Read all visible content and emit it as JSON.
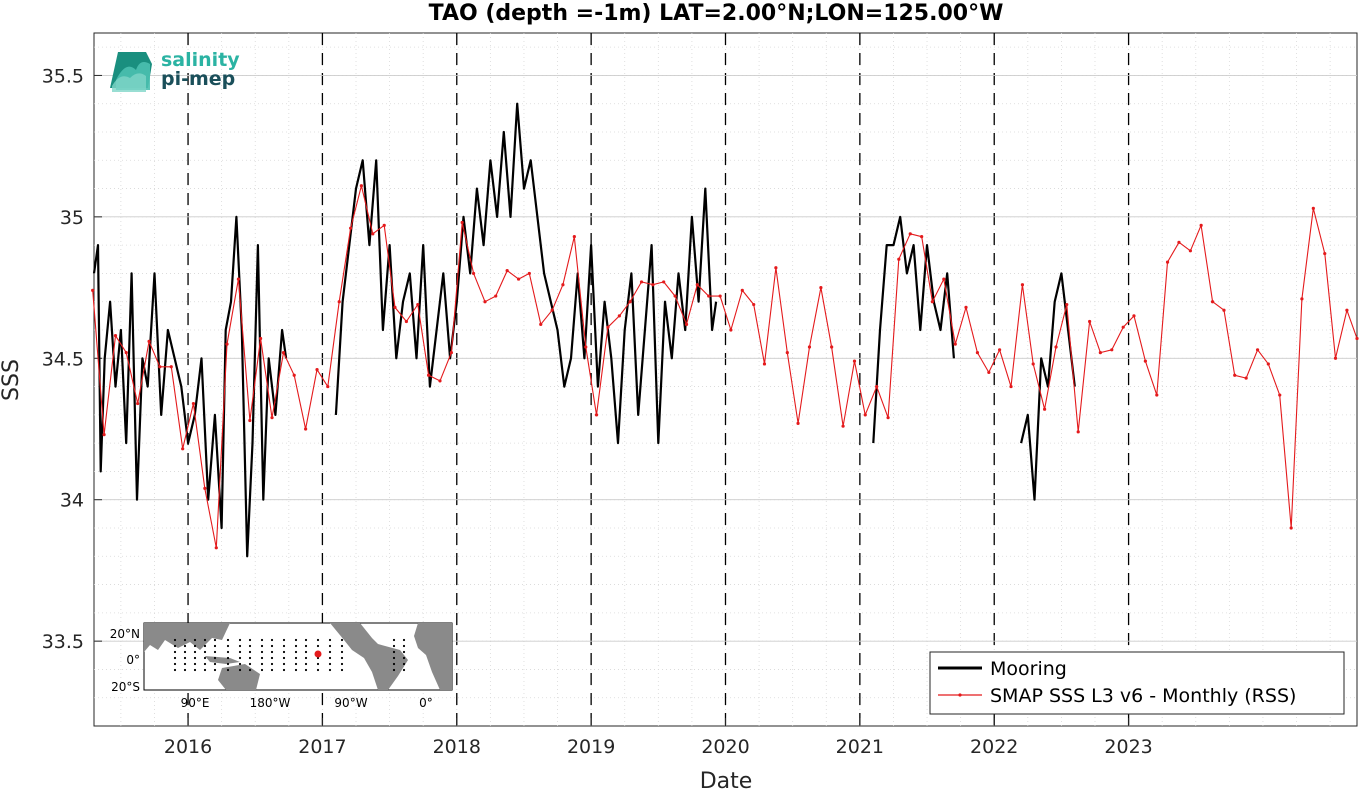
{
  "chart_data": {
    "type": "line",
    "title": "TAO (depth =-1m) LAT=2.00°N;LON=125.00°W",
    "xlabel": "Date",
    "ylabel": "SSS",
    "x_ticks": [
      "2016",
      "2017",
      "2018",
      "2019",
      "2020",
      "2021",
      "2022",
      "2023"
    ],
    "y_ticks": [
      "33.5",
      "34",
      "34.5",
      "35",
      "35.5"
    ],
    "xlim": [
      2015.3,
      2024.7
    ],
    "ylim": [
      33.2,
      35.65
    ],
    "grid": true,
    "year_lines": "dashed",
    "legend_position": "bottom-right",
    "series": [
      {
        "name": "Mooring",
        "color": "#000000",
        "x": [
          2015.3,
          2015.33,
          2015.35,
          2015.38,
          2015.42,
          2015.46,
          2015.5,
          2015.54,
          2015.58,
          2015.62,
          2015.66,
          2015.7,
          2015.75,
          2015.8,
          2015.85,
          2015.9,
          2015.95,
          2016.0,
          2016.05,
          2016.1,
          2016.15,
          2016.2,
          2016.25,
          2016.28,
          2016.32,
          2016.36,
          2016.4,
          2016.44,
          2016.48,
          2016.52,
          2016.56,
          2016.6,
          2016.65,
          2016.7,
          2016.73,
          2016.8,
          2016.9,
          2017.0,
          2017.05,
          2017.1,
          2017.15,
          2017.2,
          2017.25,
          2017.3,
          2017.35,
          2017.4,
          2017.45,
          2017.5,
          2017.55,
          2017.6,
          2017.65,
          2017.7,
          2017.75,
          2017.8,
          2017.85,
          2017.9,
          2017.95,
          2018.0,
          2018.05,
          2018.1,
          2018.15,
          2018.2,
          2018.25,
          2018.3,
          2018.35,
          2018.4,
          2018.45,
          2018.5,
          2018.55,
          2018.6,
          2018.65,
          2018.7,
          2018.75,
          2018.8,
          2018.85,
          2018.9,
          2018.95,
          2019.0,
          2019.05,
          2019.1,
          2019.15,
          2019.2,
          2019.25,
          2019.3,
          2019.35,
          2019.4,
          2019.45,
          2019.5,
          2019.55,
          2019.6,
          2019.65,
          2019.7,
          2019.75,
          2019.8,
          2019.85,
          2019.9,
          2019.93,
          2020.0,
          2020.3,
          2020.6,
          2020.9,
          2021.1,
          2021.15,
          2021.2,
          2021.25,
          2021.3,
          2021.35,
          2021.4,
          2021.45,
          2021.5,
          2021.55,
          2021.6,
          2021.65,
          2021.7,
          2021.9,
          2022.2,
          2022.25,
          2022.3,
          2022.35,
          2022.4,
          2022.45,
          2022.5,
          2022.55,
          2022.6
        ],
        "values": [
          34.8,
          34.9,
          34.1,
          34.5,
          34.7,
          34.4,
          34.6,
          34.2,
          34.8,
          34.0,
          34.5,
          34.4,
          34.8,
          34.3,
          34.6,
          34.5,
          34.4,
          34.2,
          34.3,
          34.5,
          34.0,
          34.3,
          33.9,
          34.6,
          34.7,
          35.0,
          34.6,
          33.8,
          34.2,
          34.9,
          34.0,
          34.5,
          34.3,
          34.6,
          34.5,
          null,
          null,
          null,
          null,
          34.3,
          34.7,
          34.9,
          35.1,
          35.2,
          34.9,
          35.2,
          34.6,
          34.9,
          34.5,
          34.7,
          34.8,
          34.5,
          34.9,
          34.4,
          34.6,
          34.8,
          34.5,
          34.7,
          35.0,
          34.8,
          35.1,
          34.9,
          35.2,
          35.0,
          35.3,
          35.0,
          35.4,
          35.1,
          35.2,
          35.0,
          34.8,
          34.7,
          34.6,
          34.4,
          34.5,
          34.8,
          34.5,
          34.9,
          34.4,
          34.7,
          34.5,
          34.2,
          34.6,
          34.8,
          34.3,
          34.6,
          34.9,
          34.2,
          34.7,
          34.5,
          34.8,
          34.6,
          35.0,
          34.7,
          35.1,
          34.6,
          34.7,
          null,
          null,
          null,
          null,
          34.2,
          34.6,
          34.9,
          34.9,
          35.0,
          34.8,
          34.9,
          34.6,
          34.9,
          34.7,
          34.6,
          34.8,
          34.5,
          null,
          34.2,
          34.3,
          34.0,
          34.5,
          34.4,
          34.7,
          34.8,
          34.6,
          34.4
        ],
        "marker": "none"
      },
      {
        "name": "SMAP SSS L3 v6 - Monthly (RSS)",
        "color": "#e41a1c",
        "x": [
          2015.29,
          2015.375,
          2015.46,
          2015.54,
          2015.625,
          2015.71,
          2015.79,
          2015.875,
          2015.96,
          2016.04,
          2016.125,
          2016.21,
          2016.29,
          2016.375,
          2016.46,
          2016.54,
          2016.625,
          2016.71,
          2016.79,
          2016.875,
          2016.96,
          2017.04,
          2017.125,
          2017.21,
          2017.29,
          2017.375,
          2017.46,
          2017.54,
          2017.625,
          2017.71,
          2017.79,
          2017.875,
          2017.96,
          2018.04,
          2018.125,
          2018.21,
          2018.29,
          2018.375,
          2018.46,
          2018.54,
          2018.625,
          2018.71,
          2018.79,
          2018.875,
          2018.96,
          2019.04,
          2019.125,
          2019.21,
          2019.29,
          2019.375,
          2019.46,
          2019.54,
          2019.625,
          2019.71,
          2019.79,
          2019.875,
          2019.96,
          2020.04,
          2020.125,
          2020.21,
          2020.29,
          2020.375,
          2020.46,
          2020.54,
          2020.625,
          2020.71,
          2020.79,
          2020.875,
          2020.96,
          2021.04,
          2021.125,
          2021.21,
          2021.29,
          2021.375,
          2021.46,
          2021.54,
          2021.625,
          2021.71,
          2021.79,
          2021.875,
          2021.96,
          2022.04,
          2022.125,
          2022.21,
          2022.29,
          2022.375,
          2022.46,
          2022.54,
          2022.625,
          2022.71,
          2022.79,
          2022.875,
          2022.96,
          2023.04,
          2023.125,
          2023.21,
          2023.29,
          2023.375,
          2023.46,
          2023.54,
          2023.625,
          2023.71,
          2023.79,
          2023.875,
          2023.96,
          2024.04,
          2024.125,
          2024.21,
          2024.29,
          2024.375,
          2024.46,
          2024.54,
          2024.625,
          2024.7
        ],
        "values": [
          34.74,
          34.23,
          34.58,
          34.52,
          34.34,
          34.56,
          34.47,
          34.47,
          34.18,
          34.34,
          34.04,
          33.83,
          34.55,
          34.78,
          34.28,
          34.57,
          34.29,
          34.52,
          34.44,
          34.25,
          34.46,
          34.4,
          34.7,
          34.96,
          35.11,
          34.94,
          34.97,
          34.68,
          34.63,
          34.69,
          34.44,
          34.42,
          34.52,
          34.98,
          34.8,
          34.7,
          34.72,
          34.81,
          34.78,
          34.8,
          34.62,
          34.67,
          34.76,
          34.93,
          34.54,
          34.3,
          34.61,
          34.65,
          34.7,
          34.77,
          34.76,
          34.77,
          34.72,
          34.62,
          34.76,
          34.72,
          34.72,
          34.6,
          34.74,
          34.69,
          34.48,
          34.82,
          34.52,
          34.27,
          34.54,
          34.75,
          34.54,
          34.26,
          34.49,
          34.3,
          34.4,
          34.29,
          34.85,
          34.94,
          34.93,
          34.7,
          34.78,
          34.55,
          34.68,
          34.52,
          34.45,
          34.53,
          34.4,
          34.76,
          34.48,
          34.32,
          34.54,
          34.69,
          34.24,
          34.63,
          34.52,
          34.53,
          34.61,
          34.65,
          34.49,
          34.37,
          34.84,
          34.91,
          34.88,
          34.97,
          34.7,
          34.67,
          34.44,
          34.43,
          34.53,
          34.48,
          34.37,
          33.9,
          34.71,
          35.03,
          34.87,
          34.5,
          34.67,
          34.57
        ],
        "marker": "dot"
      }
    ]
  },
  "logo": {
    "line1": "salinity",
    "line2": "pi-mep"
  },
  "inset_map": {
    "y_labels": [
      "20°N",
      "0°",
      "20°S"
    ],
    "x_labels": [
      "90°E",
      "180°W",
      "90°W",
      "0°"
    ]
  }
}
